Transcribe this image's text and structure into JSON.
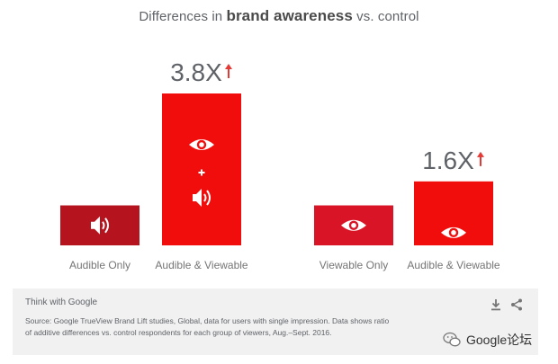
{
  "title": {
    "prefix": "Differences in ",
    "emphasis": "brand awareness",
    "suffix": " vs. control"
  },
  "chart_data": {
    "type": "bar",
    "title": "Differences in brand awareness vs. control",
    "groups": [
      {
        "multiplier": "3.8X",
        "bars": [
          {
            "label": "Audible Only",
            "value": 1.0,
            "icons": [
              "speaker-icon"
            ],
            "color": "#b5141f"
          },
          {
            "label": "Audible & Viewable",
            "value": 3.8,
            "icons": [
              "eye-icon",
              "plus-icon",
              "speaker-icon"
            ],
            "color": "#f20d0d"
          }
        ]
      },
      {
        "multiplier": "1.6X",
        "bars": [
          {
            "label": "Viewable Only",
            "value": 1.0,
            "icons": [
              "eye-icon"
            ],
            "color": "#d91427"
          },
          {
            "label": "Audible & Viewable",
            "value": 1.6,
            "icons": [
              "eye-icon",
              "plus-icon",
              "speaker-icon"
            ],
            "color": "#f20d0d"
          }
        ]
      }
    ],
    "arrow_color": "#e53935",
    "label_color": "#757575"
  },
  "footer": {
    "brand": "Think with Google",
    "source_line1": "Source: Google TrueView Brand Lift studies, Global, data for users with single impression. Data shows ratio",
    "source_line2": "of additive differences vs. control respondents for each group of viewers, Aug.–Sept. 2016."
  },
  "watermark": {
    "text": "Google论坛"
  }
}
